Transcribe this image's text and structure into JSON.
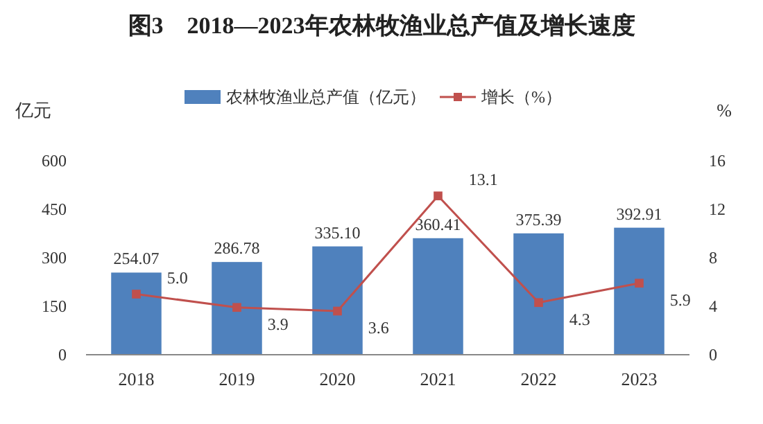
{
  "chart_data": {
    "type": "bar",
    "title": "图3　2018—2023年农林牧渔业总产值及增长速度",
    "ylabel": "亿元",
    "y2label": "%",
    "categories": [
      "2018",
      "2019",
      "2020",
      "2021",
      "2022",
      "2023"
    ],
    "series": [
      {
        "name": "农林牧渔业总产值（亿元）",
        "color": "#4f81bd",
        "values": [
          254.07,
          286.78,
          335.1,
          360.41,
          375.39,
          392.91
        ],
        "value_labels": [
          "254.07",
          "286.78",
          "335.10",
          "360.41",
          "375.39",
          "392.91"
        ]
      },
      {
        "name": "增长（%）",
        "type": "line",
        "axis": "y2",
        "color": "#c0504d",
        "marker": "square",
        "values": [
          5.0,
          3.9,
          3.6,
          13.1,
          4.3,
          5.9
        ],
        "value_labels": [
          "5.0",
          "3.9",
          "3.6",
          "13.1",
          "4.3",
          "5.9"
        ]
      }
    ],
    "ylim": [
      0,
      600
    ],
    "yticks": [
      0,
      150,
      300,
      450,
      600
    ],
    "y2lim": [
      0,
      16
    ],
    "y2ticks": [
      0,
      4,
      8,
      12,
      16
    ],
    "grid": false,
    "legend": "top"
  }
}
